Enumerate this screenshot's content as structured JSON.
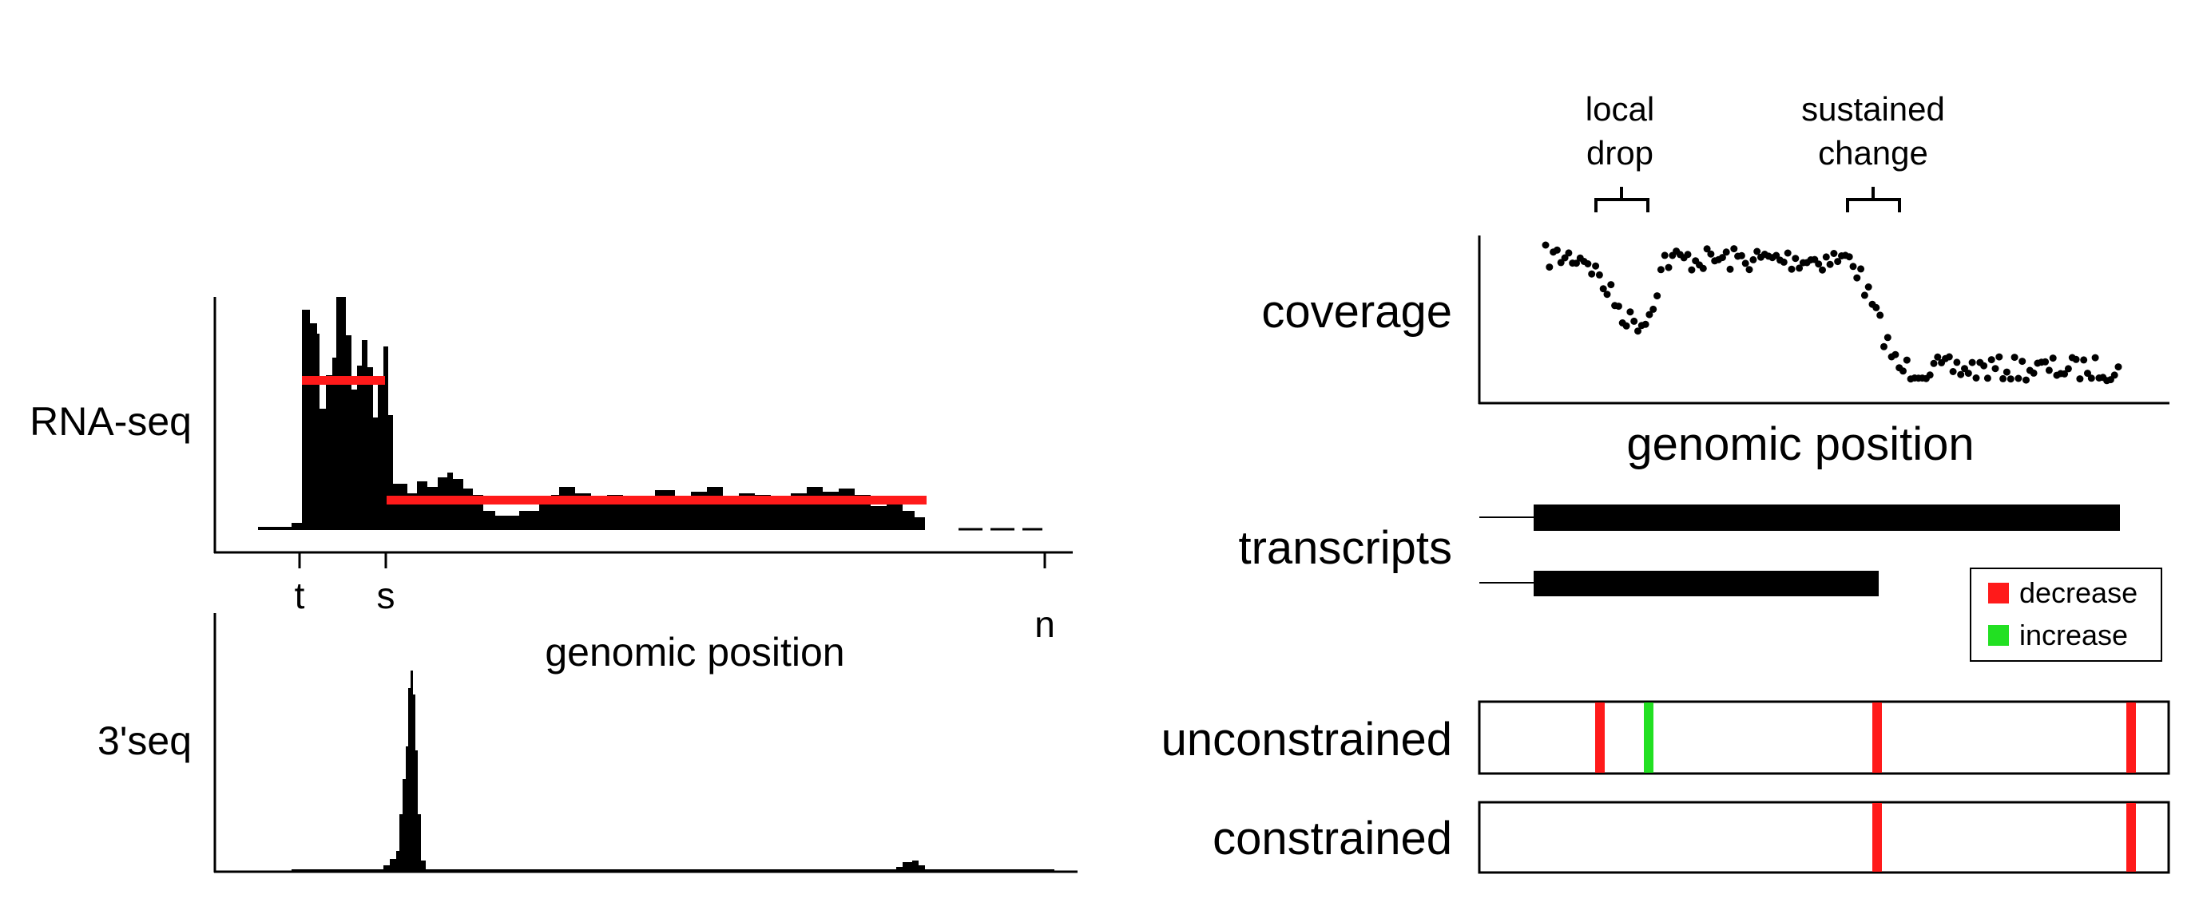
{
  "left": {
    "rnaseq_label": "RNA-seq",
    "threeseq_label": "3'seq",
    "tick_t": "t",
    "tick_s": "s",
    "tick_n": "n",
    "xlabel": "genomic position"
  },
  "right": {
    "coverage_label": "coverage",
    "transcripts_label": "transcripts",
    "xlabel": "genomic position",
    "annotation_local_line1": "local",
    "annotation_local_line2": "drop",
    "annotation_sustained_line1": "sustained",
    "annotation_sustained_line2": "change",
    "unconstrained_label": "unconstrained",
    "constrained_label": "constrained",
    "legend": {
      "decrease_label": "decrease",
      "increase_label": "increase",
      "decrease_color": "#ff1a1a",
      "increase_color": "#22e022"
    }
  },
  "colors": {
    "signal": "#000000",
    "fit": "#ff1a1a"
  }
}
